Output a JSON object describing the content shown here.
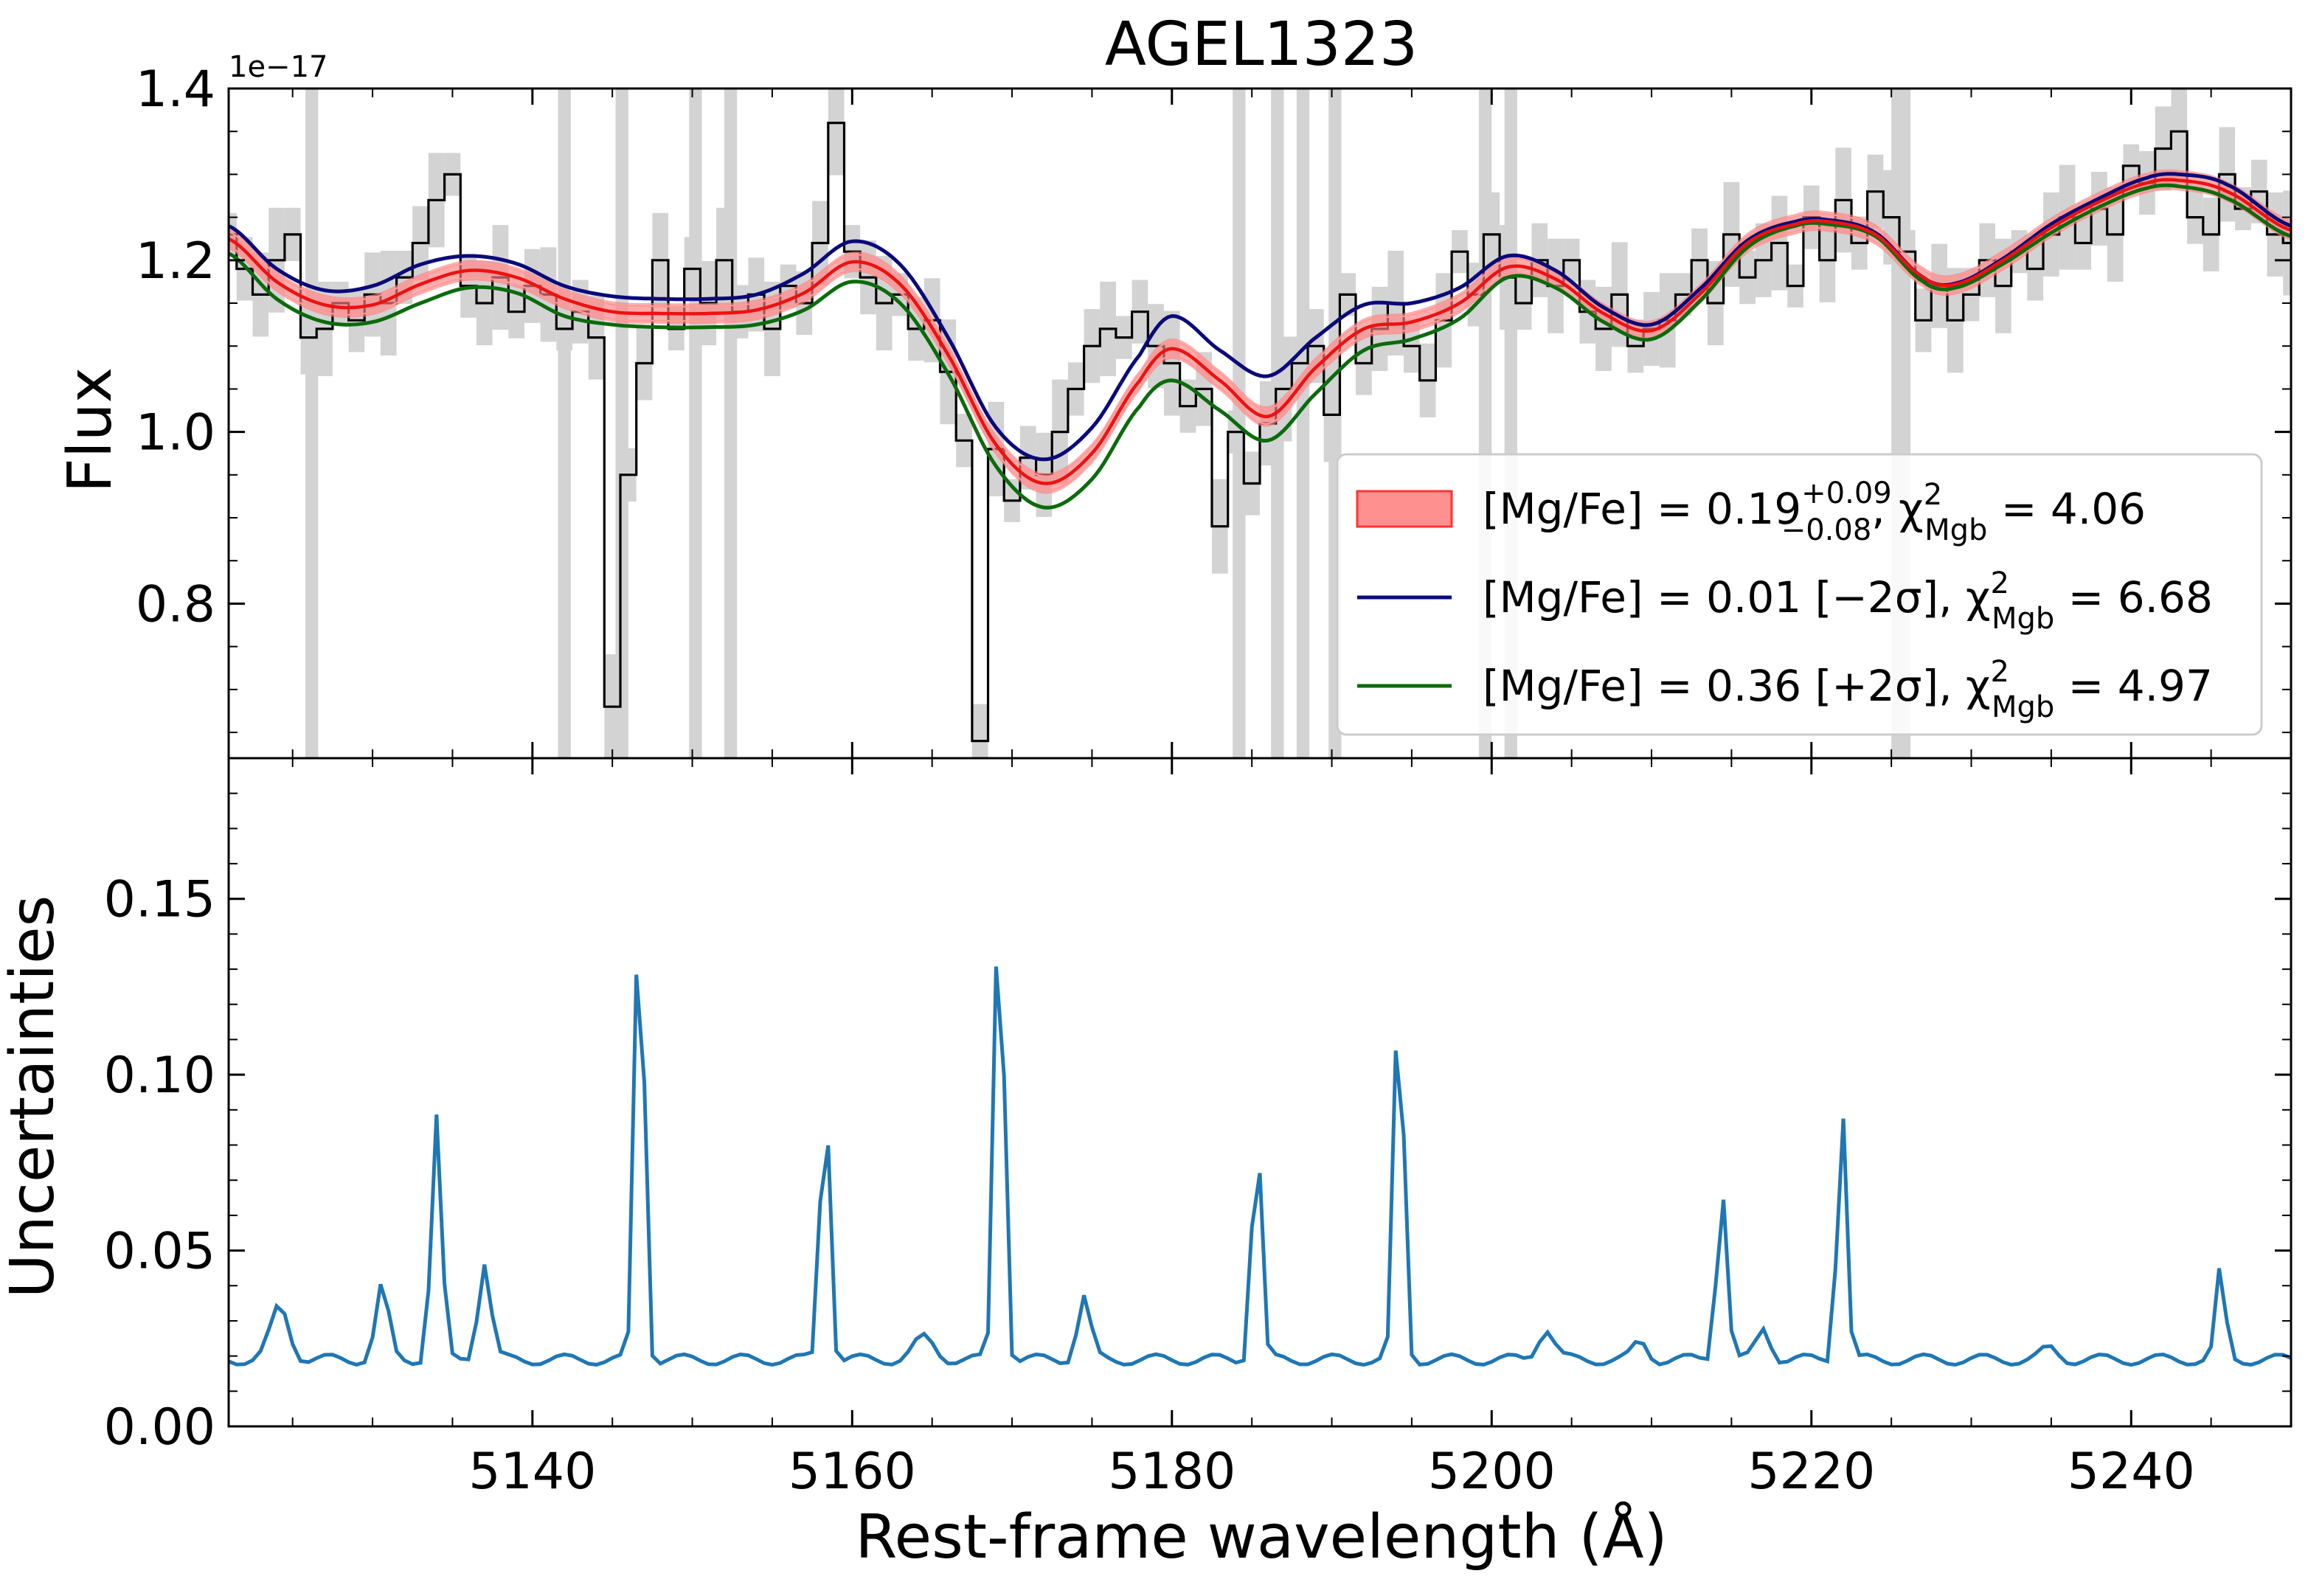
{
  "chart_data": [
    {
      "type": "line",
      "panel": "top",
      "title": "AGEL1323",
      "ylabel": "Flux",
      "offset_text": "1e−17",
      "xlim": [
        5121,
        5250
      ],
      "ylim": [
        0.62,
        1.4
      ],
      "y_ticks": [
        0.8,
        1.0,
        1.2,
        1.4
      ],
      "y_tick_labels": [
        "0.8",
        "1.0",
        "1.2",
        "1.4"
      ],
      "legend_placement": "lower right",
      "legend": [
        {
          "label": "[Mg/Fe] = 0.19 (+0.09/−0.08), χ² Mgb = 4.06",
          "main": "[Mg/Fe] = 0.19",
          "sup": "+0.09",
          "sub": "−0.08",
          "chi_tail": " = 4.06",
          "color": "#ff5555"
        },
        {
          "label": "[Mg/Fe] = 0.01 [−2σ], χ² Mgb = 6.68",
          "main": "[Mg/Fe] = 0.01 [−2σ], ",
          "chi_tail": " = 6.68",
          "color": "#0a0a7a"
        },
        {
          "label": "[Mg/Fe] = 0.36 [+2σ], χ² Mgb = 4.97",
          "main": "[Mg/Fe] = 0.36 [+2σ], ",
          "chi_tail": " = 4.97",
          "color": "#0b6b0b"
        }
      ],
      "chi_symbol": "χ",
      "chi_sup": "2",
      "chi_sub": "Mgb",
      "masked_ranges": [
        [
          5125.8,
          5126.6
        ],
        [
          5141.6,
          5142.4
        ],
        [
          5145.2,
          5146.0
        ],
        [
          5149.8,
          5150.6
        ],
        [
          5152.0,
          5152.8
        ],
        [
          5183.8,
          5184.6
        ],
        [
          5186.2,
          5187.0
        ],
        [
          5187.8,
          5188.6
        ],
        [
          5189.8,
          5190.6
        ],
        [
          5199.2,
          5200.0
        ],
        [
          5200.8,
          5201.6
        ],
        [
          5225.0,
          5226.2
        ]
      ],
      "series": [
        {
          "name": "[Mg/Fe] = 0.19",
          "role": "best fit",
          "x": [
            5121,
            5124,
            5127,
            5130,
            5133,
            5136,
            5139,
            5142,
            5145,
            5148,
            5151,
            5154,
            5157,
            5160,
            5163,
            5166,
            5169,
            5172,
            5175,
            5178,
            5180,
            5183,
            5186,
            5189,
            5192,
            5195,
            5198,
            5201,
            5204,
            5207,
            5210,
            5213,
            5216,
            5219,
            5221,
            5224,
            5227,
            5229,
            5232,
            5235,
            5238,
            5241,
            5243,
            5246,
            5250
          ],
          "y": [
            1.225,
            1.175,
            1.148,
            1.148,
            1.172,
            1.188,
            1.18,
            1.155,
            1.14,
            1.138,
            1.138,
            1.142,
            1.162,
            1.198,
            1.172,
            1.09,
            0.985,
            0.94,
            0.975,
            1.06,
            1.097,
            1.06,
            1.018,
            1.075,
            1.12,
            1.128,
            1.15,
            1.192,
            1.178,
            1.138,
            1.118,
            1.16,
            1.22,
            1.242,
            1.245,
            1.23,
            1.18,
            1.172,
            1.2,
            1.238,
            1.268,
            1.29,
            1.293,
            1.28,
            1.235
          ],
          "band": 0.012
        },
        {
          "name": "[Mg/Fe] = 0.01 [−2σ]",
          "x": [
            5121,
            5124,
            5127,
            5130,
            5133,
            5136,
            5139,
            5142,
            5145,
            5148,
            5151,
            5154,
            5157,
            5160,
            5163,
            5166,
            5169,
            5172,
            5175,
            5178,
            5180,
            5183,
            5186,
            5189,
            5192,
            5195,
            5198,
            5201,
            5204,
            5207,
            5210,
            5213,
            5216,
            5219,
            5221,
            5224,
            5227,
            5229,
            5232,
            5235,
            5238,
            5241,
            5243,
            5246,
            5250
          ],
          "y": [
            1.24,
            1.19,
            1.165,
            1.17,
            1.195,
            1.205,
            1.196,
            1.17,
            1.158,
            1.155,
            1.155,
            1.16,
            1.185,
            1.222,
            1.195,
            1.11,
            1.005,
            0.968,
            1.005,
            1.09,
            1.135,
            1.095,
            1.065,
            1.11,
            1.148,
            1.15,
            1.168,
            1.205,
            1.188,
            1.145,
            1.125,
            1.166,
            1.223,
            1.245,
            1.247,
            1.232,
            1.18,
            1.173,
            1.202,
            1.242,
            1.272,
            1.296,
            1.3,
            1.288,
            1.24
          ]
        },
        {
          "name": "[Mg/Fe] = 0.36 [+2σ]",
          "x": [
            5121,
            5124,
            5127,
            5130,
            5133,
            5136,
            5139,
            5142,
            5145,
            5148,
            5151,
            5154,
            5157,
            5160,
            5163,
            5166,
            5169,
            5172,
            5175,
            5178,
            5180,
            5183,
            5186,
            5189,
            5192,
            5195,
            5198,
            5201,
            5204,
            5207,
            5210,
            5213,
            5216,
            5219,
            5221,
            5224,
            5227,
            5229,
            5232,
            5235,
            5238,
            5241,
            5243,
            5246,
            5250
          ],
          "y": [
            1.208,
            1.155,
            1.128,
            1.128,
            1.15,
            1.168,
            1.162,
            1.135,
            1.125,
            1.122,
            1.122,
            1.125,
            1.142,
            1.175,
            1.15,
            1.068,
            0.96,
            0.912,
            0.945,
            1.03,
            1.06,
            1.025,
            0.99,
            1.045,
            1.095,
            1.108,
            1.132,
            1.18,
            1.168,
            1.128,
            1.108,
            1.152,
            1.215,
            1.24,
            1.242,
            1.228,
            1.175,
            1.168,
            1.196,
            1.232,
            1.262,
            1.284,
            1.286,
            1.272,
            1.228
          ]
        },
        {
          "name": "observed",
          "style": "steps",
          "x": [
            5121,
            5122,
            5123,
            5124,
            5125,
            5126,
            5127,
            5128,
            5129,
            5130,
            5131,
            5132,
            5133,
            5134,
            5135,
            5136,
            5137,
            5138,
            5139,
            5140,
            5141,
            5142,
            5143,
            5144,
            5145,
            5146,
            5147,
            5148,
            5149,
            5150,
            5151,
            5152,
            5153,
            5154,
            5155,
            5156,
            5157,
            5158,
            5159,
            5160,
            5161,
            5162,
            5163,
            5164,
            5165,
            5166,
            5167,
            5168,
            5169,
            5170,
            5171,
            5172,
            5173,
            5174,
            5175,
            5176,
            5177,
            5178,
            5179,
            5180,
            5181,
            5182,
            5183,
            5184,
            5185,
            5186,
            5187,
            5188,
            5189,
            5190,
            5191,
            5192,
            5193,
            5194,
            5195,
            5196,
            5197,
            5198,
            5199,
            5200,
            5201,
            5202,
            5203,
            5204,
            5205,
            5206,
            5207,
            5208,
            5209,
            5210,
            5211,
            5212,
            5213,
            5214,
            5215,
            5216,
            5217,
            5218,
            5219,
            5220,
            5221,
            5222,
            5223,
            5224,
            5225,
            5226,
            5227,
            5228,
            5229,
            5230,
            5231,
            5232,
            5233,
            5234,
            5235,
            5236,
            5237,
            5238,
            5239,
            5240,
            5241,
            5242,
            5243,
            5244,
            5245,
            5246,
            5247,
            5248,
            5249,
            5250
          ],
          "y": [
            1.23,
            1.19,
            1.16,
            1.2,
            1.23,
            1.11,
            1.12,
            1.15,
            1.13,
            1.16,
            1.15,
            1.18,
            1.22,
            1.27,
            1.3,
            1.17,
            1.15,
            1.18,
            1.14,
            1.17,
            1.16,
            1.12,
            1.14,
            1.11,
            0.68,
            0.95,
            1.08,
            1.2,
            1.12,
            1.19,
            1.15,
            1.2,
            1.14,
            1.16,
            1.12,
            1.17,
            1.15,
            1.22,
            1.36,
            1.21,
            1.18,
            1.15,
            1.16,
            1.12,
            1.13,
            1.07,
            0.99,
            0.64,
            0.98,
            0.92,
            0.97,
            0.95,
            1.0,
            1.05,
            1.1,
            1.12,
            1.11,
            1.14,
            1.1,
            1.08,
            1.03,
            1.05,
            0.89,
            1.0,
            0.94,
            1.01,
            1.05,
            1.08,
            1.1,
            1.02,
            1.16,
            1.08,
            1.12,
            1.15,
            1.1,
            1.06,
            1.13,
            1.21,
            1.16,
            1.23,
            1.18,
            1.15,
            1.2,
            1.17,
            1.2,
            1.14,
            1.12,
            1.16,
            1.1,
            1.12,
            1.13,
            1.16,
            1.2,
            1.15,
            1.23,
            1.18,
            1.2,
            1.22,
            1.17,
            1.25,
            1.2,
            1.27,
            1.22,
            1.28,
            1.25,
            1.21,
            1.13,
            1.17,
            1.13,
            1.16,
            1.2,
            1.17,
            1.21,
            1.19,
            1.23,
            1.25,
            1.22,
            1.26,
            1.23,
            1.31,
            1.29,
            1.33,
            1.35,
            1.25,
            1.23,
            1.3,
            1.26,
            1.28,
            1.23,
            1.22
          ]
        }
      ]
    },
    {
      "type": "line",
      "panel": "bottom",
      "xlabel": "Rest-frame wavelength (Å)",
      "ylabel": "Uncertainties",
      "xlim": [
        5121,
        5250
      ],
      "ylim": [
        0.0,
        0.19
      ],
      "x_ticks": [
        5140,
        5160,
        5180,
        5200,
        5220,
        5240
      ],
      "x_tick_labels": [
        "5140",
        "5160",
        "5180",
        "5200",
        "5220",
        "5240"
      ],
      "y_ticks": [
        0.0,
        0.05,
        0.1,
        0.15
      ],
      "y_tick_labels": [
        "0.00",
        "0.05",
        "0.10",
        "0.15"
      ],
      "series": [
        {
          "name": "uncertainty",
          "color": "#1f77b4",
          "baseline": 0.019,
          "peaks": [
            [
              5124.2,
              0.034,
              0.8
            ],
            [
              5130.6,
              0.04,
              0.55
            ],
            [
              5134,
              0.088,
              0.45
            ],
            [
              5137,
              0.047,
              0.55
            ],
            [
              5146.7,
              0.159,
              0.4
            ],
            [
              5158.3,
              0.099,
              0.4
            ],
            [
              5164.5,
              0.025,
              0.9
            ],
            [
              5169.2,
              0.163,
              0.4
            ],
            [
              5174.5,
              0.037,
              0.55
            ],
            [
              5185.3,
              0.087,
              0.4
            ],
            [
              5194.2,
              0.13,
              0.4
            ],
            [
              5203.4,
              0.028,
              0.7
            ],
            [
              5209.3,
              0.024,
              0.6
            ],
            [
              5214.4,
              0.068,
              0.45
            ],
            [
              5217,
              0.028,
              0.6
            ],
            [
              5221.9,
              0.093,
              0.4
            ],
            [
              5234.9,
              0.022,
              0.7
            ],
            [
              5245.6,
              0.045,
              0.4
            ]
          ]
        }
      ]
    }
  ]
}
